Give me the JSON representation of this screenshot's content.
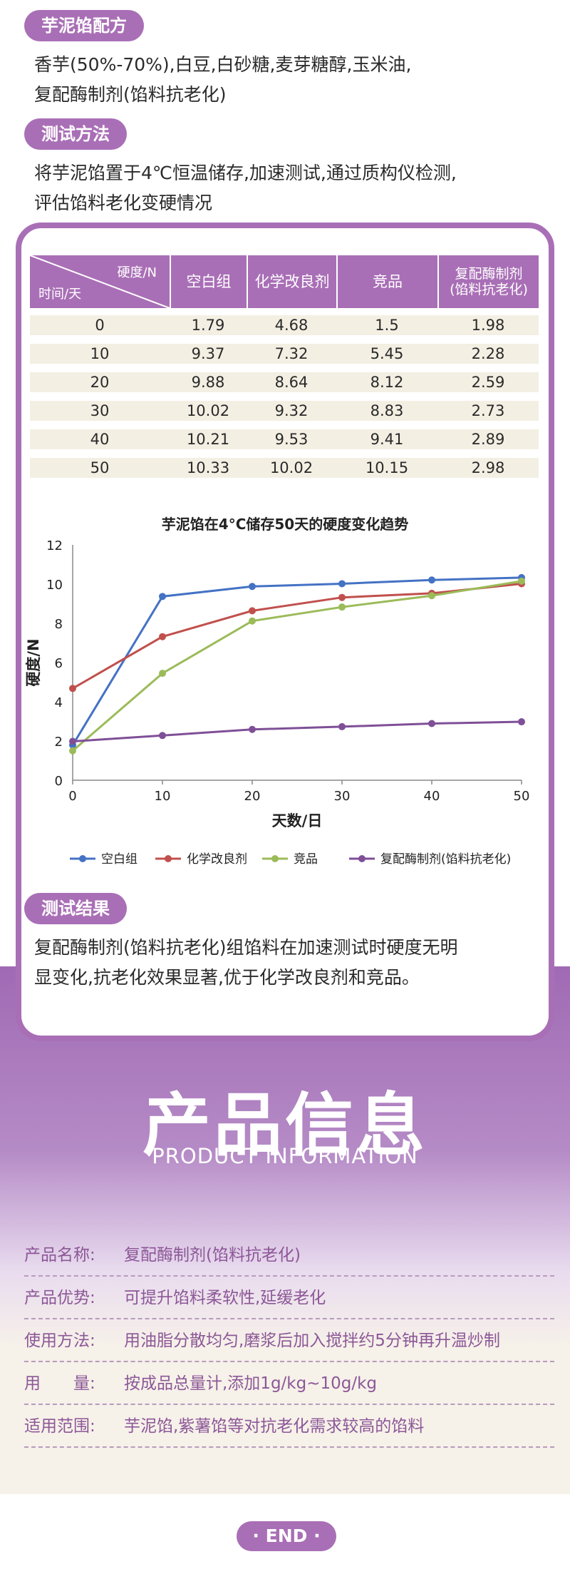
{
  "formula": {
    "title": "芋泥馅配方",
    "line1": "香芋(50%-70%),白豆,白砂糖,麦芽糖醇,玉米油,",
    "line2": "复配酶制剂(馅料抗老化)"
  },
  "method": {
    "title": "测试方法",
    "line1": "将芋泥馅置于4℃恒温储存,加速测试,通过质构仪检测,",
    "line2": "评估馅料老化变硬情况"
  },
  "table": {
    "diag_top": "硬度/N",
    "diag_bottom": "时间/天",
    "headers": [
      "空白组",
      "化学改良剂",
      "竞品",
      "复配酶制剂\n(馅料抗老化)"
    ],
    "rows": [
      [
        "0",
        "1.79",
        "4.68",
        "1.5",
        "1.98"
      ],
      [
        "10",
        "9.37",
        "7.32",
        "5.45",
        "2.28"
      ],
      [
        "20",
        "9.88",
        "8.64",
        "8.12",
        "2.59"
      ],
      [
        "30",
        "10.02",
        "9.32",
        "8.83",
        "2.73"
      ],
      [
        "40",
        "10.21",
        "9.53",
        "9.41",
        "2.89"
      ],
      [
        "50",
        "10.33",
        "10.02",
        "10.15",
        "2.98"
      ]
    ]
  },
  "chart_data": {
    "type": "line",
    "title": "芋泥馅在4°C储存50天的硬度变化趋势",
    "xlabel": "天数/日",
    "ylabel": "硬度/N",
    "x": [
      0,
      10,
      20,
      30,
      40,
      50
    ],
    "xlim": [
      0,
      50
    ],
    "ylim": [
      0,
      12
    ],
    "yticks": [
      0,
      2,
      4,
      6,
      8,
      10,
      12
    ],
    "legend_position": "bottom",
    "series": [
      {
        "name": "空白组",
        "color": "#4472c4",
        "values": [
          1.79,
          9.37,
          9.88,
          10.02,
          10.21,
          10.33
        ]
      },
      {
        "name": "化学改良剂",
        "color": "#c0504d",
        "values": [
          4.68,
          7.32,
          8.64,
          9.32,
          9.53,
          10.02
        ]
      },
      {
        "name": "竞品",
        "color": "#9bbb59",
        "values": [
          1.5,
          5.45,
          8.12,
          8.83,
          9.41,
          10.15
        ]
      },
      {
        "name": "复配酶制剂(馅料抗老化)",
        "color": "#7f4f97",
        "values": [
          1.98,
          2.28,
          2.59,
          2.73,
          2.89,
          2.98
        ]
      }
    ]
  },
  "result": {
    "title": "测试结果",
    "line1": "复配酶制剂(馅料抗老化)组馅料在加速测试时硬度无明",
    "line2": "显变化,抗老化效果显著,优于化学改良剂和竞品。"
  },
  "product": {
    "title": "产品信息",
    "subtitle": "PRODUCT INFORMATION",
    "rows": [
      {
        "key": "产品名称:",
        "value": "复配酶制剂(馅料抗老化)"
      },
      {
        "key": "产品优势:",
        "value": "可提升馅料柔软性,延缓老化"
      },
      {
        "key": "使用方法:",
        "value": "用油脂分散均匀,磨浆后加入搅拌约5分钟再升温炒制"
      },
      {
        "key": "用　　量:",
        "value": "按成品总量计,添加1g/kg~10g/kg"
      },
      {
        "key": "适用范围:",
        "value": "芋泥馅,紫薯馅等对抗老化需求较高的馅料"
      }
    ]
  },
  "end": {
    "label": "· END ·"
  },
  "colors": {
    "accent": "#a96fb6",
    "table_row": "#f3efe3",
    "info_text": "#8c5797"
  }
}
